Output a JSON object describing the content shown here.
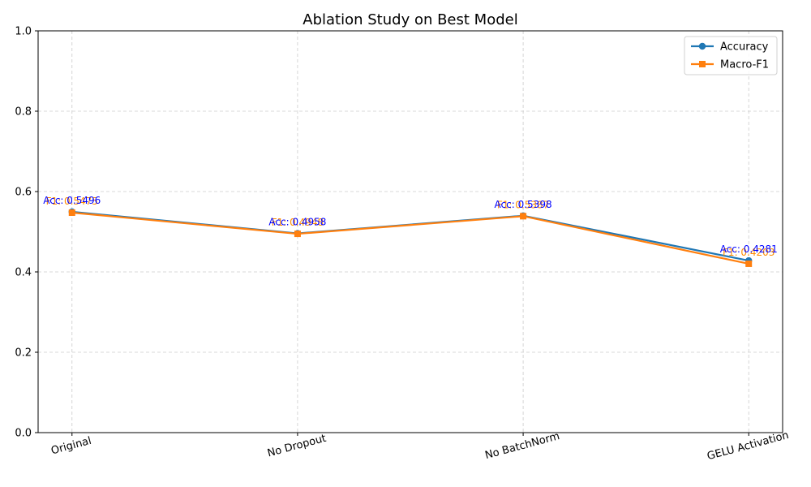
{
  "chart_data": {
    "type": "line",
    "title": "Ablation Study on Best Model",
    "xlabel": "",
    "ylabel": "",
    "categories": [
      "Original",
      "No Dropout",
      "No BatchNorm",
      "GELU Activation"
    ],
    "ylim": [
      0,
      1.0
    ],
    "yticks": [
      "0.0",
      "0.2",
      "0.4",
      "0.6",
      "0.8",
      "1.0"
    ],
    "grid": true,
    "legend_position": "top-right",
    "series": [
      {
        "name": "Accuracy",
        "color": "#1f77b4",
        "marker": "circle",
        "values": [
          0.5496,
          0.4958,
          0.5398,
          0.4281
        ],
        "labels": [
          "Acc: 0.5496",
          "Acc: 0.4958",
          "Acc: 0.5398",
          "Acc: 0.4281"
        ],
        "label_color": "#0000ff"
      },
      {
        "name": "Macro-F1",
        "color": "#ff7f0e",
        "marker": "square",
        "values": [
          0.5475,
          0.4948,
          0.5387,
          0.4203
        ],
        "labels": [
          "F1: 0.5475",
          "F1: 0.4948",
          "F1: 0.5387",
          "F1: 0.4203"
        ],
        "label_color": "#ff8c00"
      }
    ]
  }
}
